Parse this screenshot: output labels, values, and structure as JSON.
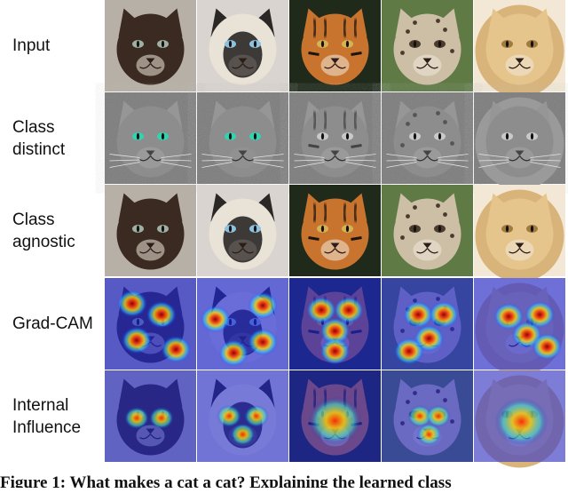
{
  "rows": [
    {
      "id": "input",
      "label_lines": [
        "Input"
      ],
      "treatment": "photo"
    },
    {
      "id": "class-distinct",
      "label_lines": [
        "Class",
        "distinct"
      ],
      "treatment": "edges"
    },
    {
      "id": "class-agnostic",
      "label_lines": [
        "Class",
        "agnostic"
      ],
      "treatment": "photo"
    },
    {
      "id": "grad-cam",
      "label_lines": [
        "Grad-CAM"
      ],
      "treatment": "heatmap"
    },
    {
      "id": "internal-influence",
      "label_lines": [
        "Internal",
        "Influence"
      ],
      "treatment": "heatmap"
    }
  ],
  "columns": [
    {
      "id": "cat-dark",
      "fur": "#3b2a22",
      "background": "#b7b0a6",
      "eye": "#9fb0a2",
      "stripes": false,
      "mane": false,
      "spots": false
    },
    {
      "id": "siamese-cat",
      "fur": "#e9e2d6",
      "face_mask": "#2a2725",
      "background": "#d9d4cf",
      "eye": "#8ec1df",
      "stripes": false,
      "mane": false,
      "spots": false
    },
    {
      "id": "tiger",
      "fur": "#c9742e",
      "background": "#1f2a1b",
      "eye": "#d4b255",
      "stripes": true,
      "mane": false,
      "spots": false
    },
    {
      "id": "cheetah-cub",
      "fur": "#cdbfa6",
      "background": "#5f7a45",
      "eye": "#4a3b2c",
      "stripes": false,
      "mane": false,
      "spots": true
    },
    {
      "id": "lion",
      "fur": "#e6c58c",
      "background": "#f3e8d6",
      "eye": "#a07b40",
      "stripes": false,
      "mane": true,
      "spots": false
    }
  ],
  "heatmap_hotspots": {
    "grad-cam": [
      [
        [
          0.3,
          0.28
        ],
        [
          0.62,
          0.4
        ],
        [
          0.35,
          0.68
        ],
        [
          0.78,
          0.78
        ]
      ],
      [
        [
          0.2,
          0.45
        ],
        [
          0.72,
          0.3
        ],
        [
          0.72,
          0.7
        ],
        [
          0.4,
          0.82
        ]
      ],
      [
        [
          0.35,
          0.35
        ],
        [
          0.65,
          0.35
        ],
        [
          0.5,
          0.58
        ],
        [
          0.5,
          0.8
        ]
      ],
      [
        [
          0.4,
          0.4
        ],
        [
          0.68,
          0.4
        ],
        [
          0.52,
          0.66
        ],
        [
          0.3,
          0.8
        ]
      ],
      [
        [
          0.38,
          0.42
        ],
        [
          0.72,
          0.4
        ],
        [
          0.58,
          0.62
        ],
        [
          0.8,
          0.75
        ]
      ]
    ],
    "internal-influence": [
      [
        [
          0.35,
          0.52
        ],
        [
          0.62,
          0.52
        ]
      ],
      [
        [
          0.35,
          0.5
        ],
        [
          0.65,
          0.5
        ],
        [
          0.5,
          0.7
        ]
      ],
      [
        [
          0.5,
          0.55
        ]
      ],
      [
        [
          0.42,
          0.5
        ],
        [
          0.62,
          0.5
        ],
        [
          0.52,
          0.7
        ]
      ],
      [
        [
          0.52,
          0.56
        ]
      ]
    ]
  },
  "caption": "Figure 1: What makes a cat a cat? Explaining the learned class"
}
